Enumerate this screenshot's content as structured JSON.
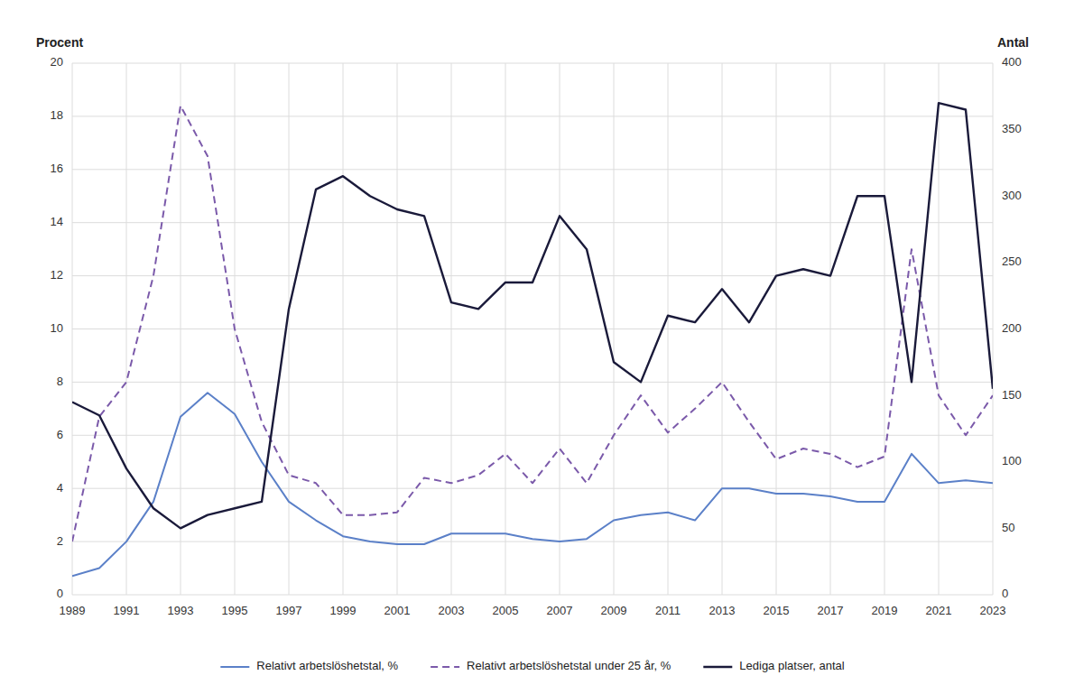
{
  "chart_data": {
    "type": "line",
    "ylabel": "Procent",
    "y2label": "Antal",
    "x": [
      1989,
      1990,
      1991,
      1992,
      1993,
      1994,
      1995,
      1996,
      1997,
      1998,
      1999,
      2000,
      2001,
      2002,
      2003,
      2004,
      2005,
      2006,
      2007,
      2008,
      2009,
      2010,
      2011,
      2012,
      2013,
      2014,
      2015,
      2016,
      2017,
      2018,
      2019,
      2020,
      2021,
      2022,
      2023
    ],
    "xlim": [
      1989,
      2023
    ],
    "xticks": [
      1989,
      1991,
      1993,
      1995,
      1997,
      1999,
      2001,
      2003,
      2005,
      2007,
      2009,
      2011,
      2013,
      2015,
      2017,
      2019,
      2021,
      2023
    ],
    "ylim": [
      0,
      20
    ],
    "yticks": [
      0,
      2,
      4,
      6,
      8,
      10,
      12,
      14,
      16,
      18,
      20
    ],
    "y2lim": [
      0,
      400
    ],
    "y2ticks": [
      0,
      50,
      100,
      150,
      200,
      250,
      300,
      350,
      400
    ],
    "grid": true,
    "legend": "bottom",
    "series": [
      {
        "name": "Relativt arbetslöshetstal, %",
        "color": "#5b80c8",
        "line_style": "solid",
        "values": [
          0.7,
          1.0,
          2.0,
          3.5,
          6.7,
          7.6,
          6.8,
          5.0,
          3.5,
          2.8,
          2.2,
          2.0,
          1.9,
          1.9,
          2.3,
          2.3,
          2.3,
          2.1,
          2.0,
          2.1,
          2.8,
          3.0,
          3.1,
          2.8,
          4.0,
          4.0,
          3.8,
          3.8,
          3.7,
          3.5,
          3.5,
          5.3,
          4.2,
          4.3,
          4.2
        ]
      },
      {
        "name": "Relativt arbetslöshetstal under 25 år, %",
        "color": "#7b5aaa",
        "line_style": "dashed",
        "values": [
          2.0,
          6.7,
          8.0,
          12.0,
          18.4,
          16.5,
          10.0,
          6.5,
          4.5,
          4.2,
          3.0,
          3.0,
          3.1,
          4.4,
          4.2,
          4.5,
          5.3,
          4.2,
          5.5,
          4.2,
          6.0,
          7.5,
          6.1,
          7.0,
          8.0,
          6.5,
          5.1,
          5.5,
          5.3,
          4.8,
          5.2,
          13.0,
          7.5,
          6.0,
          7.5
        ]
      },
      {
        "name": "Lediga platser, antal",
        "color": "#1a1a3a",
        "line_style": "solid",
        "axis": "y2",
        "values": [
          145,
          135,
          95,
          65,
          50,
          60,
          65,
          70,
          215,
          305,
          315,
          300,
          290,
          285,
          220,
          215,
          235,
          235,
          285,
          260,
          175,
          160,
          210,
          205,
          230,
          205,
          240,
          245,
          240,
          300,
          300,
          160,
          370,
          365,
          155
        ]
      }
    ]
  }
}
